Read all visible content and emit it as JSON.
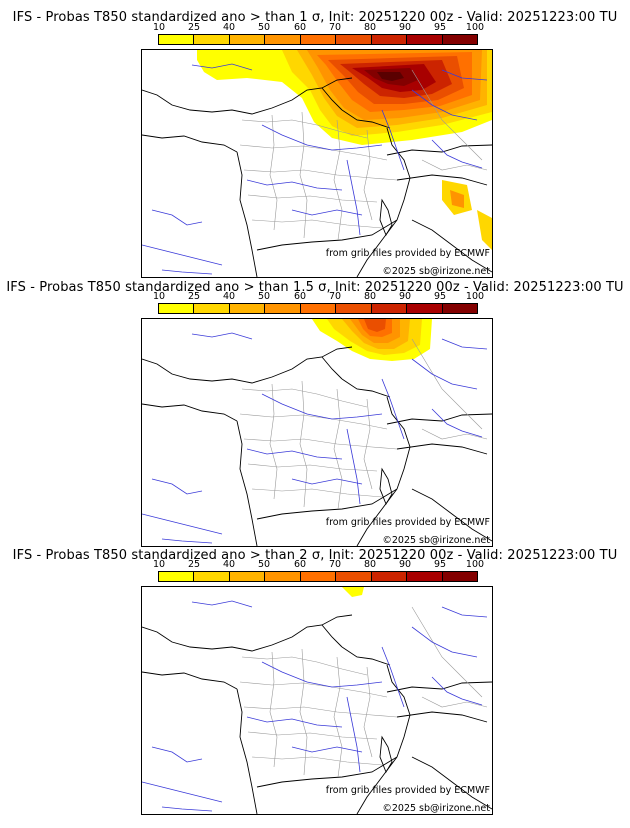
{
  "legend_ticks": [
    "10",
    "25",
    "40",
    "50",
    "60",
    "70",
    "80",
    "90",
    "95",
    "100"
  ],
  "legend_colors": [
    "#ffff00",
    "#ffd700",
    "#ffb300",
    "#ff9400",
    "#ff7000",
    "#ea4f00",
    "#cc2400",
    "#a80000",
    "#830000",
    "#5a0000"
  ],
  "panels": [
    {
      "title": "IFS - Probas T850  standardized ano > than 1 σ, Init: 20251220 00z - Valid: 20251223:00 TU",
      "source": "from grib files provided by ECMWF",
      "credit": "©2025 sb@irizone.net"
    },
    {
      "title": "IFS - Probas T850  standardized ano > than 1.5 σ, Init: 20251220 00z - Valid: 20251223:00 TU",
      "source": "from grib files provided by ECMWF",
      "credit": "©2025 sb@irizone.net"
    },
    {
      "title": "IFS - Probas T850  standardized ano > than 2 σ, Init: 20251220 00z - Valid: 20251223:00 TU",
      "source": "from grib files provided by ECMWF",
      "credit": "©2025 sb@irizone.net"
    }
  ]
}
